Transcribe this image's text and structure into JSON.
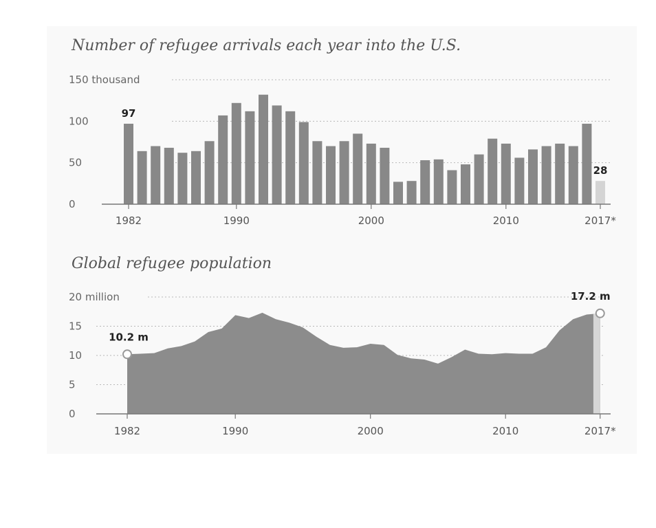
{
  "colors": {
    "bar": "#888888",
    "bar_highlight": "#d4d4d4",
    "area": "#8c8c8c",
    "area_highlight": "#d6d6d6",
    "grid": "#b8b8b8",
    "axis": "#777777",
    "text": "#555555"
  },
  "chart_data": [
    {
      "type": "bar",
      "title": "Number of refugee arrivals each year into the U.S.",
      "xlabel": "",
      "ylabel": "",
      "ylim": [
        0,
        150
      ],
      "y_ticks": [
        {
          "value": 0,
          "label": "0"
        },
        {
          "value": 50,
          "label": "50"
        },
        {
          "value": 100,
          "label": "100"
        },
        {
          "value": 150,
          "label": "150 thousand"
        }
      ],
      "x_ticks": [
        {
          "value": 1982,
          "label": "1982"
        },
        {
          "value": 1990,
          "label": "1990"
        },
        {
          "value": 2000,
          "label": "2000"
        },
        {
          "value": 2010,
          "label": "2010"
        },
        {
          "value": 2017,
          "label": "2017*"
        }
      ],
      "categories": [
        1982,
        1983,
        1984,
        1985,
        1986,
        1987,
        1988,
        1989,
        1990,
        1991,
        1992,
        1993,
        1994,
        1995,
        1996,
        1997,
        1998,
        1999,
        2000,
        2001,
        2002,
        2003,
        2004,
        2005,
        2006,
        2007,
        2008,
        2009,
        2010,
        2011,
        2012,
        2013,
        2014,
        2015,
        2016,
        2017
      ],
      "values": [
        97,
        64,
        70,
        68,
        62,
        64,
        76,
        107,
        122,
        112,
        132,
        119,
        112,
        99,
        76,
        70,
        76,
        85,
        73,
        68,
        27,
        28,
        53,
        54,
        41,
        48,
        60,
        79,
        73,
        56,
        66,
        70,
        73,
        70,
        97,
        28
      ],
      "highlight_index": 35,
      "annotations": [
        {
          "label": "97",
          "x": 1982,
          "y": 97
        },
        {
          "label": "28",
          "x": 2017,
          "y": 28
        }
      ],
      "grid": true
    },
    {
      "type": "area",
      "title": "Global refugee population",
      "xlabel": "",
      "ylabel": "",
      "ylim": [
        0,
        20
      ],
      "y_ticks": [
        {
          "value": 0,
          "label": "0"
        },
        {
          "value": 5,
          "label": "5"
        },
        {
          "value": 10,
          "label": "10"
        },
        {
          "value": 15,
          "label": "15"
        },
        {
          "value": 20,
          "label": "20 million"
        }
      ],
      "x_ticks": [
        {
          "value": 1982,
          "label": "1982"
        },
        {
          "value": 1990,
          "label": "1990"
        },
        {
          "value": 2000,
          "label": "2000"
        },
        {
          "value": 2010,
          "label": "2010"
        },
        {
          "value": 2017,
          "label": "2017*"
        }
      ],
      "x": [
        1982,
        1983,
        1984,
        1985,
        1986,
        1987,
        1988,
        1989,
        1990,
        1991,
        1992,
        1993,
        1994,
        1995,
        1996,
        1997,
        1998,
        1999,
        2000,
        2001,
        2002,
        2003,
        2004,
        2005,
        2006,
        2007,
        2008,
        2009,
        2010,
        2011,
        2012,
        2013,
        2014,
        2015,
        2016,
        2017
      ],
      "values": [
        10.2,
        10.3,
        10.4,
        11.2,
        11.6,
        12.4,
        14.0,
        14.6,
        16.9,
        16.4,
        17.3,
        16.2,
        15.6,
        14.8,
        13.2,
        11.8,
        11.3,
        11.4,
        12.0,
        11.8,
        10.1,
        9.5,
        9.3,
        8.6,
        9.7,
        11.0,
        10.3,
        10.2,
        10.4,
        10.3,
        10.3,
        11.4,
        14.3,
        16.2,
        17.0,
        17.2
      ],
      "highlight_from": 2016.5,
      "annotations": [
        {
          "label": "10.2 m",
          "x": 1982,
          "y": 10.2
        },
        {
          "label": "17.2 m",
          "x": 2017,
          "y": 17.2
        }
      ],
      "grid": true
    }
  ]
}
